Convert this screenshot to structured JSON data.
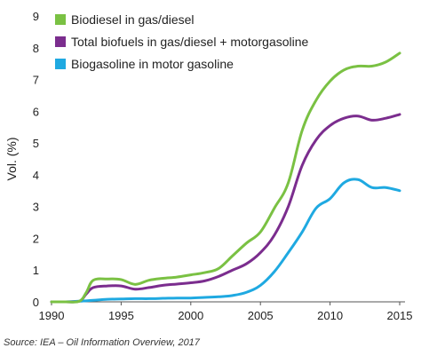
{
  "chart_data": {
    "type": "line",
    "title": "",
    "xlabel": "",
    "ylabel": "Vol. (%)",
    "xlim": [
      1990,
      2015
    ],
    "ylim": [
      0,
      9
    ],
    "xticks": [
      1990,
      1995,
      2000,
      2005,
      2010,
      2015
    ],
    "yticks": [
      0,
      1,
      2,
      3,
      4,
      5,
      6,
      7,
      8,
      9
    ],
    "grid": false,
    "legend_position": "top-left",
    "series": [
      {
        "name": "Biodiesel in gas/diesel",
        "color": "#7ac143",
        "points": [
          [
            1990,
            0
          ],
          [
            1991,
            0
          ],
          [
            1992,
            0.02
          ],
          [
            1992.5,
            0.3
          ],
          [
            1993,
            0.68
          ],
          [
            1994,
            0.72
          ],
          [
            1995,
            0.7
          ],
          [
            1996,
            0.55
          ],
          [
            1997,
            0.68
          ],
          [
            1998,
            0.74
          ],
          [
            1999,
            0.78
          ],
          [
            2000,
            0.85
          ],
          [
            2001,
            0.92
          ],
          [
            2002,
            1.05
          ],
          [
            2003,
            1.45
          ],
          [
            2004,
            1.85
          ],
          [
            2005,
            2.2
          ],
          [
            2006,
            2.95
          ],
          [
            2007,
            3.75
          ],
          [
            2008,
            5.4
          ],
          [
            2009,
            6.35
          ],
          [
            2010,
            6.95
          ],
          [
            2011,
            7.3
          ],
          [
            2012,
            7.42
          ],
          [
            2013,
            7.42
          ],
          [
            2014,
            7.55
          ],
          [
            2015,
            7.83
          ]
        ]
      },
      {
        "name": "Total biofuels in gas/diesel + motorgasoline",
        "color": "#7b2d8e",
        "points": [
          [
            1990,
            0
          ],
          [
            1991,
            0
          ],
          [
            1992,
            0.02
          ],
          [
            1992.5,
            0.25
          ],
          [
            1993,
            0.45
          ],
          [
            1994,
            0.5
          ],
          [
            1995,
            0.5
          ],
          [
            1996,
            0.4
          ],
          [
            1997,
            0.45
          ],
          [
            1998,
            0.52
          ],
          [
            1999,
            0.56
          ],
          [
            2000,
            0.6
          ],
          [
            2001,
            0.66
          ],
          [
            2002,
            0.8
          ],
          [
            2003,
            1.0
          ],
          [
            2004,
            1.2
          ],
          [
            2005,
            1.55
          ],
          [
            2006,
            2.1
          ],
          [
            2007,
            3.0
          ],
          [
            2008,
            4.3
          ],
          [
            2009,
            5.1
          ],
          [
            2010,
            5.55
          ],
          [
            2011,
            5.78
          ],
          [
            2012,
            5.85
          ],
          [
            2013,
            5.72
          ],
          [
            2014,
            5.78
          ],
          [
            2015,
            5.9
          ]
        ]
      },
      {
        "name": "Biogasoline in motor gasoline",
        "color": "#1fa9e1",
        "points": [
          [
            1990,
            0
          ],
          [
            1991,
            0
          ],
          [
            1992,
            0.02
          ],
          [
            1993,
            0.05
          ],
          [
            1994,
            0.08
          ],
          [
            1995,
            0.09
          ],
          [
            1996,
            0.1
          ],
          [
            1997,
            0.1
          ],
          [
            1998,
            0.11
          ],
          [
            1999,
            0.12
          ],
          [
            2000,
            0.12
          ],
          [
            2001,
            0.14
          ],
          [
            2002,
            0.16
          ],
          [
            2003,
            0.2
          ],
          [
            2004,
            0.3
          ],
          [
            2005,
            0.52
          ],
          [
            2006,
            0.95
          ],
          [
            2007,
            1.55
          ],
          [
            2008,
            2.2
          ],
          [
            2009,
            2.95
          ],
          [
            2010,
            3.25
          ],
          [
            2011,
            3.75
          ],
          [
            2012,
            3.85
          ],
          [
            2013,
            3.6
          ],
          [
            2014,
            3.6
          ],
          [
            2015,
            3.5
          ]
        ]
      }
    ],
    "source": "Source: IEA – Oil Information Overview, 2017"
  }
}
